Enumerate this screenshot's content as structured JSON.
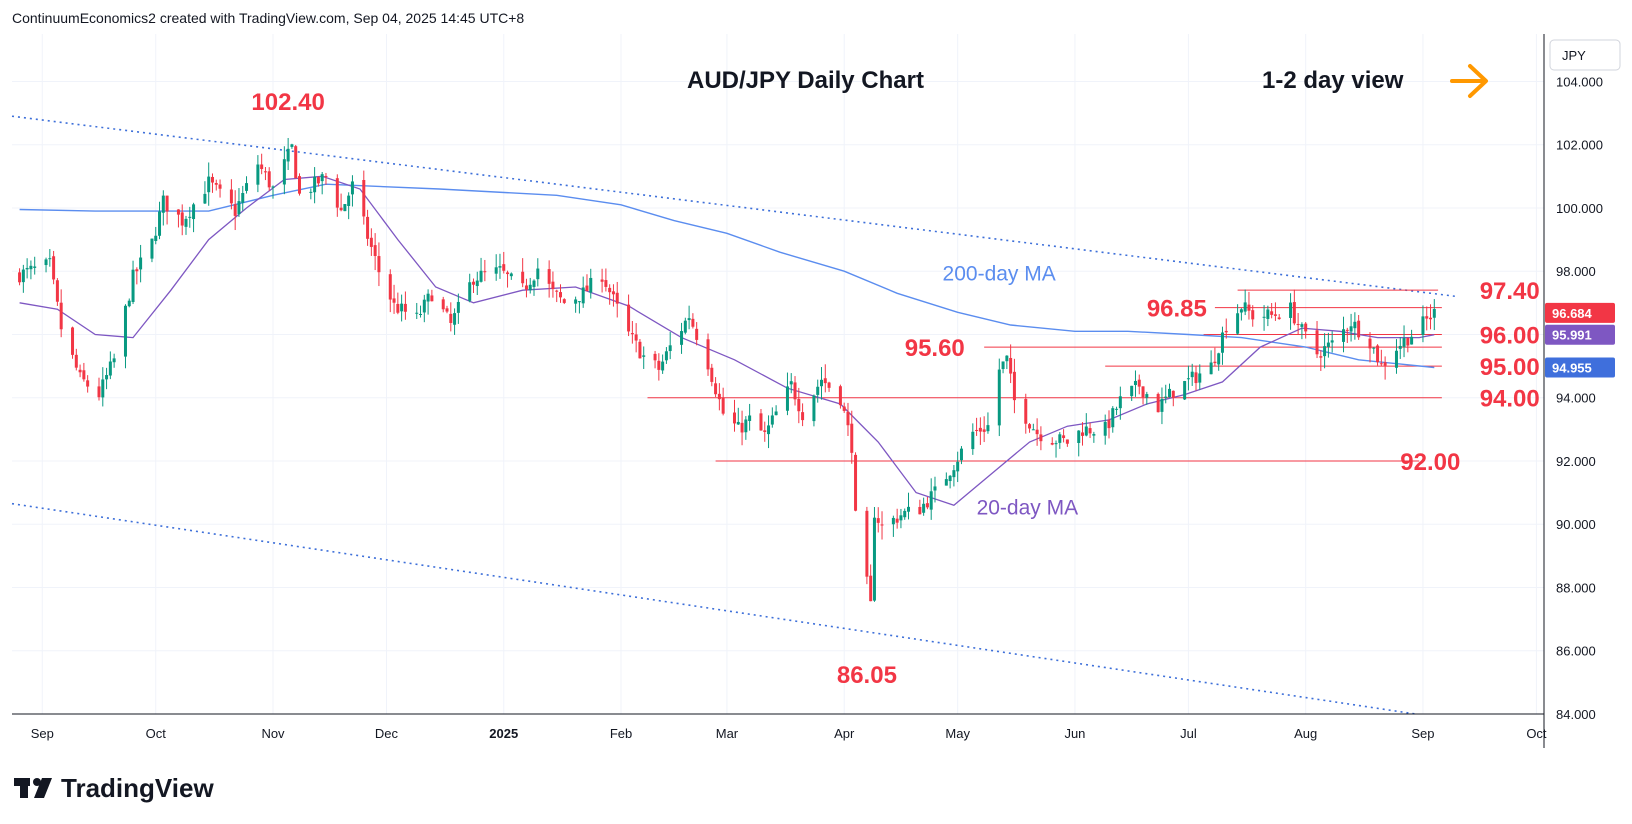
{
  "header": {
    "attribution": "ContinuumEconomics2 created with TradingView.com, Sep 04, 2025 14:45 UTC+8"
  },
  "currency_badge": "JPY",
  "chart_title": "AUD/JPY Daily Chart",
  "view_label": "1-2 day view",
  "view_arrow_icon": "arrow-right-icon",
  "brand": {
    "name": "TradingView",
    "logo_icon": "tradingview-logo-icon"
  },
  "colors": {
    "up_candle": "#089981",
    "down_candle": "#f23645",
    "level_red": "#f23645",
    "ma200": "#5b8def",
    "ma20": "#7e57c2",
    "trend": "#3d6fd9",
    "arrow": "#ff9800",
    "last_price_tag": "#f23645",
    "ma20_tag": "#7e57c2",
    "ma200_tag": "#3f6fdc"
  },
  "chart_data": {
    "type": "candlestick",
    "title": "AUD/JPY Daily Chart",
    "y_axis": {
      "unit": "JPY",
      "range": [
        84.0,
        105.5
      ],
      "ticks": [
        "104.000",
        "102.000",
        "100.000",
        "98.000",
        "96.000",
        "94.000",
        "92.000",
        "90.000",
        "88.000",
        "86.000",
        "84.000"
      ]
    },
    "x_axis": {
      "range": [
        "2024-08-24",
        "2025-10-03"
      ],
      "ticks": [
        {
          "date": "2024-09-01",
          "label": "Sep"
        },
        {
          "date": "2024-10-01",
          "label": "Oct"
        },
        {
          "date": "2024-11-01",
          "label": "Nov"
        },
        {
          "date": "2024-12-01",
          "label": "Dec"
        },
        {
          "date": "2025-01-01",
          "label": "2025"
        },
        {
          "date": "2025-02-01",
          "label": "Feb"
        },
        {
          "date": "2025-03-01",
          "label": "Mar"
        },
        {
          "date": "2025-04-01",
          "label": "Apr"
        },
        {
          "date": "2025-05-01",
          "label": "May"
        },
        {
          "date": "2025-06-01",
          "label": "Jun"
        },
        {
          "date": "2025-07-01",
          "label": "Jul"
        },
        {
          "date": "2025-08-01",
          "label": "Aug"
        },
        {
          "date": "2025-09-01",
          "label": "Sep"
        },
        {
          "date": "2025-10-01",
          "label": "Oct"
        }
      ]
    },
    "price_anchors": [
      [
        "2024-08-26",
        97.9
      ],
      [
        "2024-09-03",
        98.2
      ],
      [
        "2024-09-06",
        96.2
      ],
      [
        "2024-09-11",
        94.6
      ],
      [
        "2024-09-16",
        94.1
      ],
      [
        "2024-09-20",
        95.2
      ],
      [
        "2024-09-25",
        97.8
      ],
      [
        "2024-09-30",
        98.9
      ],
      [
        "2024-10-03",
        100.2
      ],
      [
        "2024-10-08",
        99.6
      ],
      [
        "2024-10-15",
        100.8
      ],
      [
        "2024-10-22",
        99.9
      ],
      [
        "2024-10-28",
        101.4
      ],
      [
        "2024-11-01",
        100.6
      ],
      [
        "2024-11-06",
        101.9
      ],
      [
        "2024-11-08",
        100.4
      ],
      [
        "2024-11-15",
        101.0
      ],
      [
        "2024-11-19",
        99.9
      ],
      [
        "2024-11-22",
        100.7
      ],
      [
        "2024-11-26",
        99.1
      ],
      [
        "2024-11-29",
        98.0
      ],
      [
        "2024-12-03",
        96.9
      ],
      [
        "2024-12-09",
        96.5
      ],
      [
        "2024-12-13",
        97.3
      ],
      [
        "2024-12-18",
        96.3
      ],
      [
        "2024-12-24",
        97.8
      ],
      [
        "2024-12-31",
        98.0
      ],
      [
        "2025-01-06",
        97.4
      ],
      [
        "2025-01-10",
        98.1
      ],
      [
        "2025-01-14",
        97.3
      ],
      [
        "2025-01-17",
        97.0
      ],
      [
        "2025-01-22",
        97.3
      ],
      [
        "2025-01-27",
        97.9
      ],
      [
        "2025-02-03",
        96.0
      ],
      [
        "2025-02-07",
        95.3
      ],
      [
        "2025-02-11",
        94.9
      ],
      [
        "2025-02-14",
        95.6
      ],
      [
        "2025-02-19",
        96.6
      ],
      [
        "2025-02-24",
        95.1
      ],
      [
        "2025-02-28",
        93.5
      ],
      [
        "2025-03-04",
        93.0
      ],
      [
        "2025-03-07",
        93.3
      ],
      [
        "2025-03-11",
        92.8
      ],
      [
        "2025-03-14",
        93.5
      ],
      [
        "2025-03-18",
        94.4
      ],
      [
        "2025-03-21",
        93.5
      ],
      [
        "2025-03-26",
        94.6
      ],
      [
        "2025-03-31",
        94.0
      ],
      [
        "2025-04-03",
        92.5
      ],
      [
        "2025-04-04",
        90.2
      ],
      [
        "2025-04-07",
        88.1
      ],
      [
        "2025-04-08",
        87.4
      ],
      [
        "2025-04-09",
        90.4
      ],
      [
        "2025-04-11",
        89.9
      ],
      [
        "2025-04-16",
        90.3
      ],
      [
        "2025-04-21",
        90.5
      ],
      [
        "2025-04-25",
        91.0
      ],
      [
        "2025-04-30",
        91.9
      ],
      [
        "2025-05-05",
        92.9
      ],
      [
        "2025-05-09",
        93.1
      ],
      [
        "2025-05-12",
        94.9
      ],
      [
        "2025-05-14",
        95.2
      ],
      [
        "2025-05-16",
        93.9
      ],
      [
        "2025-05-22",
        92.9
      ],
      [
        "2025-05-26",
        92.7
      ],
      [
        "2025-05-30",
        92.6
      ],
      [
        "2025-06-03",
        93.0
      ],
      [
        "2025-06-09",
        93.0
      ],
      [
        "2025-06-13",
        93.9
      ],
      [
        "2025-06-18",
        94.4
      ],
      [
        "2025-06-23",
        93.7
      ],
      [
        "2025-06-27",
        94.2
      ],
      [
        "2025-07-02",
        94.6
      ],
      [
        "2025-07-07",
        95.0
      ],
      [
        "2025-07-11",
        96.3
      ],
      [
        "2025-07-15",
        96.9
      ],
      [
        "2025-07-18",
        96.6
      ],
      [
        "2025-07-23",
        96.6
      ],
      [
        "2025-07-28",
        96.8
      ],
      [
        "2025-07-31",
        96.1
      ],
      [
        "2025-08-04",
        95.4
      ],
      [
        "2025-08-08",
        95.7
      ],
      [
        "2025-08-13",
        96.4
      ],
      [
        "2025-08-18",
        95.8
      ],
      [
        "2025-08-21",
        95.0
      ],
      [
        "2025-08-25",
        95.6
      ],
      [
        "2025-08-29",
        96.0
      ],
      [
        "2025-09-04",
        96.684
      ]
    ],
    "ma20": [
      [
        "2024-08-26",
        97.0
      ],
      [
        "2024-09-05",
        96.8
      ],
      [
        "2024-09-15",
        96.0
      ],
      [
        "2024-09-25",
        95.9
      ],
      [
        "2024-10-05",
        97.4
      ],
      [
        "2024-10-15",
        99.0
      ],
      [
        "2024-10-25",
        100.0
      ],
      [
        "2024-11-04",
        100.9
      ],
      [
        "2024-11-14",
        101.0
      ],
      [
        "2024-11-24",
        100.6
      ],
      [
        "2024-12-04",
        99.0
      ],
      [
        "2024-12-14",
        97.5
      ],
      [
        "2024-12-24",
        97.0
      ],
      [
        "2025-01-06",
        97.4
      ],
      [
        "2025-01-20",
        97.5
      ],
      [
        "2025-02-03",
        96.9
      ],
      [
        "2025-02-17",
        95.9
      ],
      [
        "2025-03-03",
        95.2
      ],
      [
        "2025-03-17",
        94.3
      ],
      [
        "2025-03-31",
        93.8
      ],
      [
        "2025-04-10",
        92.6
      ],
      [
        "2025-04-20",
        91.0
      ],
      [
        "2025-04-30",
        90.6
      ],
      [
        "2025-05-10",
        91.6
      ],
      [
        "2025-05-20",
        92.6
      ],
      [
        "2025-05-30",
        93.1
      ],
      [
        "2025-06-10",
        93.3
      ],
      [
        "2025-06-20",
        93.8
      ],
      [
        "2025-06-30",
        94.1
      ],
      [
        "2025-07-10",
        94.5
      ],
      [
        "2025-07-20",
        95.6
      ],
      [
        "2025-07-31",
        96.2
      ],
      [
        "2025-08-10",
        96.1
      ],
      [
        "2025-08-20",
        95.9
      ],
      [
        "2025-08-31",
        95.9
      ],
      [
        "2025-09-04",
        95.991
      ]
    ],
    "ma200": [
      [
        "2024-08-26",
        99.95
      ],
      [
        "2024-09-15",
        99.9
      ],
      [
        "2024-10-15",
        99.9
      ],
      [
        "2024-11-01",
        100.4
      ],
      [
        "2024-11-15",
        100.75
      ],
      [
        "2024-12-15",
        100.6
      ],
      [
        "2025-01-15",
        100.4
      ],
      [
        "2025-02-01",
        100.1
      ],
      [
        "2025-02-15",
        99.6
      ],
      [
        "2025-03-01",
        99.2
      ],
      [
        "2025-03-15",
        98.6
      ],
      [
        "2025-04-01",
        98.0
      ],
      [
        "2025-04-15",
        97.3
      ],
      [
        "2025-05-01",
        96.7
      ],
      [
        "2025-05-15",
        96.3
      ],
      [
        "2025-06-01",
        96.1
      ],
      [
        "2025-06-15",
        96.1
      ],
      [
        "2025-07-01",
        96.0
      ],
      [
        "2025-07-15",
        95.9
      ],
      [
        "2025-08-01",
        95.6
      ],
      [
        "2025-08-15",
        95.2
      ],
      [
        "2025-09-04",
        94.955
      ]
    ],
    "series": [
      {
        "name": "200-day MA",
        "label_anchor": {
          "date": "2025-04-27",
          "price": 97.7
        }
      },
      {
        "name": "20-day MA",
        "label_anchor": {
          "date": "2025-05-06",
          "price": 90.3
        }
      }
    ],
    "trendlines": [
      {
        "from": {
          "date": "2024-08-24",
          "price": 102.9
        },
        "to": {
          "date": "2025-09-10",
          "price": 97.2
        }
      },
      {
        "from": {
          "date": "2024-08-24",
          "price": 90.65
        },
        "to": {
          "date": "2025-08-30",
          "price": 84.0
        }
      }
    ],
    "levels": [
      {
        "label": "97.40",
        "price": 97.4,
        "from": "2025-07-14",
        "to": "2025-09-05",
        "label_date": "2025-09-16"
      },
      {
        "label": "96.85",
        "price": 96.85,
        "from": "2025-07-08",
        "to": "2025-09-06",
        "label_date": "2025-06-20",
        "label_side": "left"
      },
      {
        "label": "96.00",
        "price": 96.0,
        "from": "2025-07-05",
        "to": "2025-09-06",
        "label_date": "2025-09-16"
      },
      {
        "label": "95.60",
        "price": 95.6,
        "from": "2025-05-08",
        "to": "2025-09-06",
        "label_date": "2025-04-17",
        "label_side": "left"
      },
      {
        "label": "95.00",
        "price": 95.0,
        "from": "2025-06-09",
        "to": "2025-09-06",
        "label_date": "2025-09-16"
      },
      {
        "label": "94.00",
        "price": 94.0,
        "from": "2025-02-08",
        "to": "2025-09-06",
        "label_date": "2025-09-16"
      },
      {
        "label": "92.00",
        "price": 92.0,
        "from": "2025-02-26",
        "to": "2025-08-31",
        "label_date": "2025-08-26"
      }
    ],
    "annotations": [
      {
        "label": "102.40",
        "date": "2024-11-05",
        "price": 102.4
      },
      {
        "label": "86.05",
        "date": "2025-04-07",
        "price": 86.05
      }
    ],
    "price_tags": [
      {
        "label": "96.684",
        "price": 96.684,
        "style": "last"
      },
      {
        "label": "95.991",
        "price": 95.991,
        "style": "ma20"
      },
      {
        "label": "94.955",
        "price": 94.955,
        "style": "ma200"
      }
    ]
  }
}
